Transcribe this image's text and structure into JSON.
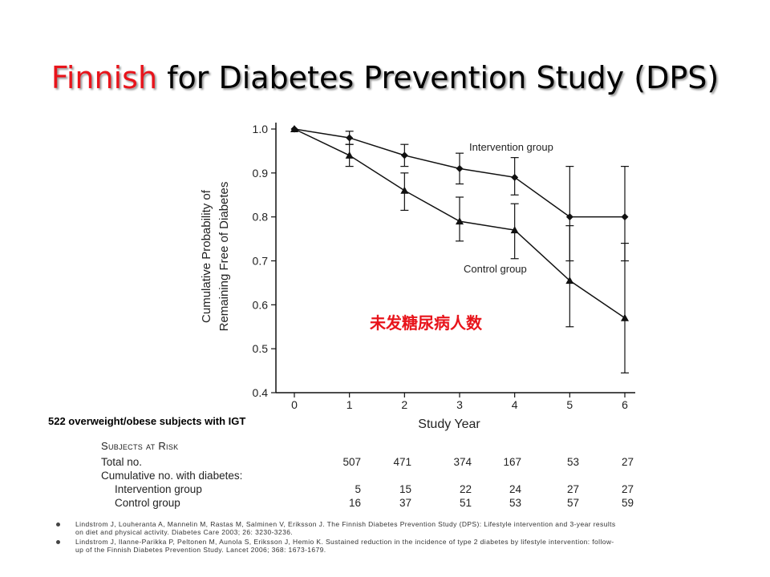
{
  "slide": {
    "title_highlight": "Finnish",
    "title_rest": " for Diabetes Prevention Study (DPS)",
    "note": "522 overweight/obese subjects with IGT",
    "chinese_annotation": "未发糖尿病人数",
    "colors": {
      "accent": "#e8141b",
      "annotation": "#e8141b",
      "plot": "#111111"
    }
  },
  "chart_data": {
    "type": "line",
    "title": "",
    "xlabel": "Study Year",
    "ylabel": [
      "Cumulative Probability of",
      "Remaining Free of Diabetes"
    ],
    "x": [
      0,
      1,
      2,
      3,
      4,
      5,
      6
    ],
    "xlim": [
      0,
      6
    ],
    "ylim": [
      0.4,
      1.0
    ],
    "x_ticks": [
      "0",
      "1",
      "2",
      "3",
      "4",
      "5",
      "6"
    ],
    "y_ticks": [
      "0.4",
      "0.5",
      "0.6",
      "0.7",
      "0.8",
      "0.9",
      "1.0"
    ],
    "grid": false,
    "series": [
      {
        "name": "Intervention group",
        "marker": "diamond",
        "values": [
          1.0,
          0.98,
          0.94,
          0.91,
          0.89,
          0.8,
          0.8
        ],
        "error_low": [
          1.0,
          0.965,
          0.915,
          0.875,
          0.85,
          0.7,
          0.7
        ],
        "error_high": [
          1.0,
          0.995,
          0.965,
          0.945,
          0.935,
          0.915,
          0.915
        ]
      },
      {
        "name": "Control group",
        "marker": "triangle",
        "values": [
          1.0,
          0.94,
          0.86,
          0.79,
          0.77,
          0.655,
          0.57
        ],
        "error_low": [
          1.0,
          0.915,
          0.815,
          0.745,
          0.705,
          0.55,
          0.445
        ],
        "error_high": [
          1.0,
          0.965,
          0.9,
          0.845,
          0.83,
          0.78,
          0.74
        ]
      }
    ]
  },
  "risk_table": {
    "heading": "Subjects at Risk",
    "rows": [
      {
        "label": "Total no.",
        "indent": false,
        "values": [
          "507",
          "471",
          "374",
          "167",
          "53",
          "27"
        ]
      },
      {
        "label": "Cumulative no. with diabetes:",
        "indent": false,
        "values": []
      },
      {
        "label": "Intervention group",
        "indent": true,
        "values": [
          "5",
          "15",
          "22",
          "24",
          "27",
          "27"
        ]
      },
      {
        "label": "Control group",
        "indent": true,
        "values": [
          "16",
          "37",
          "51",
          "53",
          "57",
          "59"
        ]
      }
    ]
  },
  "references": [
    "Lindstrom J, Louheranta A, Mannelin M, Rastas M, Salminen V, Eriksson J. The Finnish Diabetes Prevention Study (DPS): Lifestyle intervention and 3-year results on diet and physical activity. Diabetes Care 2003; 26: 3230-3236.",
    "Lindstrom J, Ilanne-Parikka P, Peltonen M, Aunola S, Eriksson J, Hemio K. Sustained reduction in the incidence of type 2 diabetes by lifestyle intervention: follow-up of the Finnish Diabetes Prevention Study. Lancet 2006; 368: 1673-1679."
  ]
}
